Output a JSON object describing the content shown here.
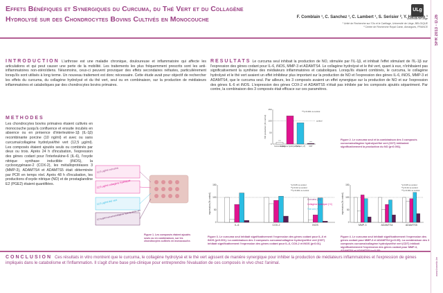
{
  "header": {
    "title_line1": "Effets Bénéfiques et Synergiques du Curcuma, du Thé Vert et du Collagène",
    "title_line2": "Hydrolysé sur des Chondrocytes Bovins Cultivés en Monocouche",
    "authors": "F. Comblain ¹, C. Sanchez ¹, C. Lambert ¹, S. Serisier ², Y. Henrotin ¹",
    "affil1": "¹ Unité de Recherche sur l'Os et le Cartilage, Université de Liège, BELGIQUE",
    "affil2": "² Centre de Recherche Royal Canin, Aimargues, FRANCE",
    "logo": "ULg",
    "logo_text": "Université de Liège"
  },
  "sidebar": {
    "sfr": "SFR 2013 - D.26",
    "url": "www.bonetic.be"
  },
  "intro": {
    "heading": "INTRODUCTION",
    "text": "L'arthrose est une maladie chronique, douloureuse et inflammatoire qui affecte les articulations et qui peut causer une perte de la mobilité. Les traitements les plus fréquemment prescrits sont les anti-inflammatoires non-stéroïdiens. Néanmoins, ceux-ci peuvent provoquer des effets secondaires néfastes, particulièrement lorsqu'ils sont utilisés à long terme. Un nouveau traitement est donc nécessaire. Cette étude avait pour objectif de rechercher les effets du curcuma, du collagène hydrolysé et du thé vert, seul ou en combinaison, sur la production de médiateurs inflammatoires et cataboliques par des chondrocytes bovins primaires."
  },
  "results": {
    "heading": "RESULTATS",
    "text": "Le curcuma seul inhibait la production de NO, stimulée par l'IL-1β, et inhibait l'effet stimulant de l'IL-1β sur l'expression des gènes codant pour IL-6, iNOS, MMP-3 et ADAMTS4. Le collagène hydrolysé et le thé vert, quant à eux, n'inhibaient pas significativement la synthèse des médiateurs inflammatoires et cataboliques. Lorsqu'ils étaient combinés, le curcuma, le collagène hydrolysé et le thé vert avaient un effet inhibiteur plus important sur la production de NO et l'expression des gènes IL-6, iNOS, MMP-3 et ADAMTS4, que le curcuma seul. Par ailleurs, les 3 composés avaient un effet synergique sur la production de NO et sur l'expression des gènes IL-6 et iNOS. L'expression des gènes COX-2 et ADAMTS5 n'était pas inhibée par les composés ajoutés séparément. Par contre, la combinaison des 3 composés était efficace sur ces paramètres."
  },
  "methods": {
    "heading": "METHODES",
    "text": "Les chondrocytes bovins primaires étaient cultivés en monocouche jusqu'à confluence et ensuite incubés en absence ou en présence d'interleukine-1β (IL-1β) recombinante porcine (10 ng/ml) et avec ou sans curcuma/collagène hydrolysé/thé vert (12,5 µg/ml). Les composés étaient ajoutés seuls ou combinés par deux ou trois. Après 24 h d'incubation, l'expression des gènes codant pour l'interleukine-6 (IL-6), l'oxyde nitrique synthase inductible (iNOS), la cyclooxygénase-2 (COX-2), les métalloprotéases 3 (MMP-3), ADAMTS4 et ADAMTS5 était déterminée par PCR en temps réel. Après 48 h d'incubation, les productions d'oxyde nitrique (NO) et de prostaglandine E2 (PGE2) étaient quantifiées."
  },
  "fig1": {
    "labels": [
      "12,5 µg/ml curcuma",
      "12,5 µg/ml collagène hydrolysé",
      "12,5 µg/ml thé vert",
      "12,5 µg/ml curcuma/collagène hydrolysé/thé vert"
    ],
    "caption": "Figure 1. Les composés étaient ajoutés seuls ou en combinaison, sur les chondrocytes cultivés en monocouche."
  },
  "conclusion": {
    "heading": "CONCLUSION",
    "text": "Ces résultats in vitro montrent que le curcuma, le collagène hydrolysé et le thé vert agissent de manière synergique pour inhiber la production de médiateurs inflammatoires et l'expression de gènes impliqués dans le catabolisme et l'inflammation. Il s'agit d'une base pré-clinique pour entreprendre l'évaluation de ces composés in vivo chez l'animal."
  },
  "fig2_caption": "Figure 2. Le curcuma seul et la combinaison des 3 composés curcuma/collagène hydrolysé/thé vert (CDT) inhibaient significativement la production du NO (p<0.001).",
  "fig3_caption": "Figure 3. Le curcuma seul inhibait significativement l'expression des gènes codant pour IL-6 et iNOS (p<0.001). La combinaison des 3 composés curcuma/collagène hydrolysé/thé vert (CDT) inhibait significativement l'expression des gènes codant pour IL-6, COX-2 et iNOS (p<0.01).",
  "fig4_caption": "Figure 4. Le curcuma seul inhibait significativement l'expression des gènes codant pour MMP-3 et ADAMTS4 (p<0.05). La combinaison des 3 composés curcuma/collagène hydrolysé/thé vert (CDT) inhibait significativement l'expression des gènes codant pour MMP-3, ADAMTS4 et ADAMTS5 (p<0.05).",
  "colors": {
    "accent": "#9a3f83",
    "curcuma": "#ffffff",
    "collagene": "#e0138f",
    "the_vert": "#2bbde3",
    "cdt": "#5a1a55",
    "control": "#ffffff"
  },
  "chart_data": [
    {
      "type": "bar",
      "ylabel": "NO production (% control)",
      "categories": [
        "Curcuma (+C)",
        "Collagène hydrolysé (+C)",
        "Thé vert (+T)",
        "CDT"
      ],
      "values": [
        8,
        122,
        92,
        3
      ],
      "ylim": [
        0,
        150
      ],
      "reference_label": "control",
      "legend": "***p<0.001 vs control",
      "sig": [
        "***",
        "",
        "",
        "***"
      ]
    },
    {
      "type": "bar",
      "ylabel": "expression (% control)",
      "categories": [
        "IL-6",
        "COX-2",
        "iNOS"
      ],
      "series": [
        {
          "name": "Curcuma (+C)",
          "values": [
            12,
            75,
            10
          ]
        },
        {
          "name": "Collagène hydrolysé (+C)",
          "values": [
            72,
            88,
            30
          ]
        },
        {
          "name": "Thé vert (+T)",
          "values": [
            118,
            105,
            98
          ]
        },
        {
          "name": "CDT",
          "values": [
            8,
            25,
            5
          ]
        }
      ],
      "ylim": [
        0,
        150
      ],
      "legend": [
        "*p<0.05 vs control",
        "**p<0.01 vs control",
        "***p<0.001 vs control"
      ]
    },
    {
      "type": "bar",
      "ylabel": "expression (% control)",
      "categories": [
        "MMP-3",
        "ADAMTS4",
        "ADAMTS5"
      ],
      "series": [
        {
          "name": "Curcuma (+C)",
          "values": [
            45,
            52,
            85
          ]
        },
        {
          "name": "Collagène hydrolysé (+C)",
          "values": [
            110,
            72,
            95
          ]
        },
        {
          "name": "Thé vert (+T)",
          "values": [
            95,
            90,
            120
          ]
        },
        {
          "name": "CDT",
          "values": [
            22,
            30,
            35
          ]
        }
      ],
      "ylim": [
        0,
        150
      ],
      "legend": [
        "*p<0.05 vs control",
        "**p<0.01 vs control",
        "***p<0.001 vs control"
      ]
    }
  ]
}
